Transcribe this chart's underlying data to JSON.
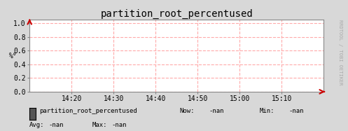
{
  "title": "partition_root_percentused",
  "ylabel": "%°",
  "background_color": "#d8d8d8",
  "plot_bg_color": "#ffffff",
  "grid_color": "#ffaaaa",
  "border_color": "#888888",
  "x_ticks_labels": [
    "14:20",
    "14:30",
    "14:40",
    "14:50",
    "15:00",
    "15:10"
  ],
  "y_ticks": [
    0.0,
    0.2,
    0.4,
    0.6,
    0.8,
    1.0
  ],
  "ylim": [
    0.0,
    1.05
  ],
  "xlim": [
    0,
    7
  ],
  "title_fontsize": 10,
  "tick_fontsize": 7,
  "legend_label": "partition_root_percentused",
  "legend_color": "#555555",
  "now_label": "Now:",
  "now_value": "-nan",
  "min_label": "Min:",
  "min_value": "-nan",
  "avg_label": "Avg:",
  "avg_value": "-nan",
  "max_label": "Max:",
  "max_value": "-nan",
  "arrow_color": "#cc0000",
  "right_label": "RRDTOOL / TOBI OETIKER",
  "font_family": "monospace"
}
